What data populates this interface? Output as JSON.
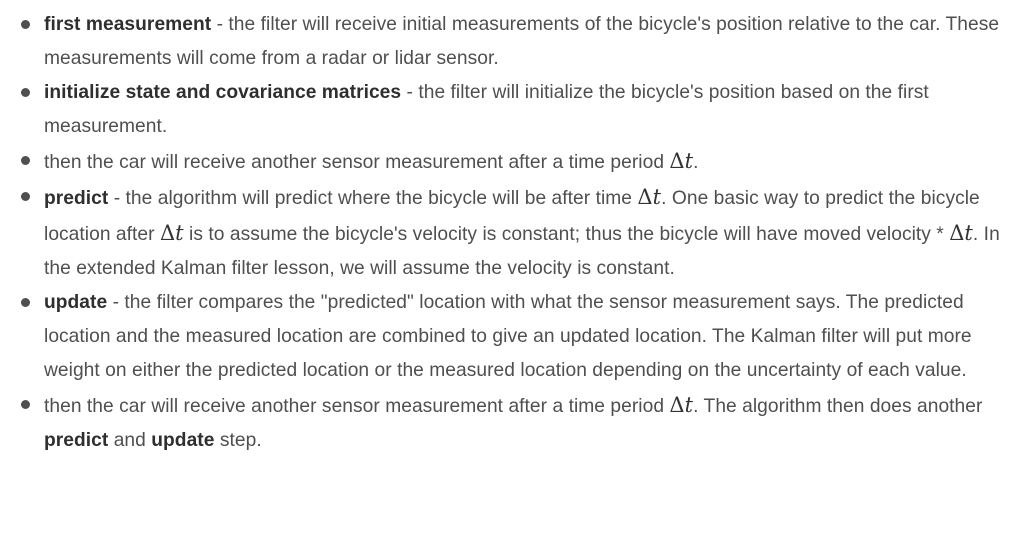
{
  "items": [
    {
      "term": "first measurement",
      "text": " - the filter will receive initial measurements of the bicycle's position relative to the car. These measurements will come from a radar or lidar sensor."
    },
    {
      "term": "initialize state and covariance matrices",
      "text": " - the filter will initialize the bicycle's position based on the first measurement."
    },
    {
      "text_before": "then the car will receive another sensor measurement after a time period ",
      "text_after": "."
    },
    {
      "term": "predict",
      "text_1": " - the algorithm will predict where the bicycle will be after time ",
      "text_2": ". One basic way to predict the bicycle location after ",
      "text_3": " is to assume the bicycle's velocity is constant; thus the bicycle will have moved velocity * ",
      "text_4": ". In the extended Kalman filter lesson, we will assume the velocity is constant."
    },
    {
      "term": "update",
      "text": " - the filter compares the \"predicted\" location with what the sensor measurement says. The predicted location and the measured location are combined to give an updated location. The Kalman filter will put more weight on either the predicted location or the measured location depending on the uncertainty of each value."
    },
    {
      "text_before": "then the car will receive another sensor measurement after a time period ",
      "text_mid": ". The algorithm then does another ",
      "term_predict": "predict",
      "text_and": " and ",
      "term_update": "update",
      "text_end": " step."
    }
  ],
  "math": {
    "delta": "Δ",
    "t": "t"
  }
}
